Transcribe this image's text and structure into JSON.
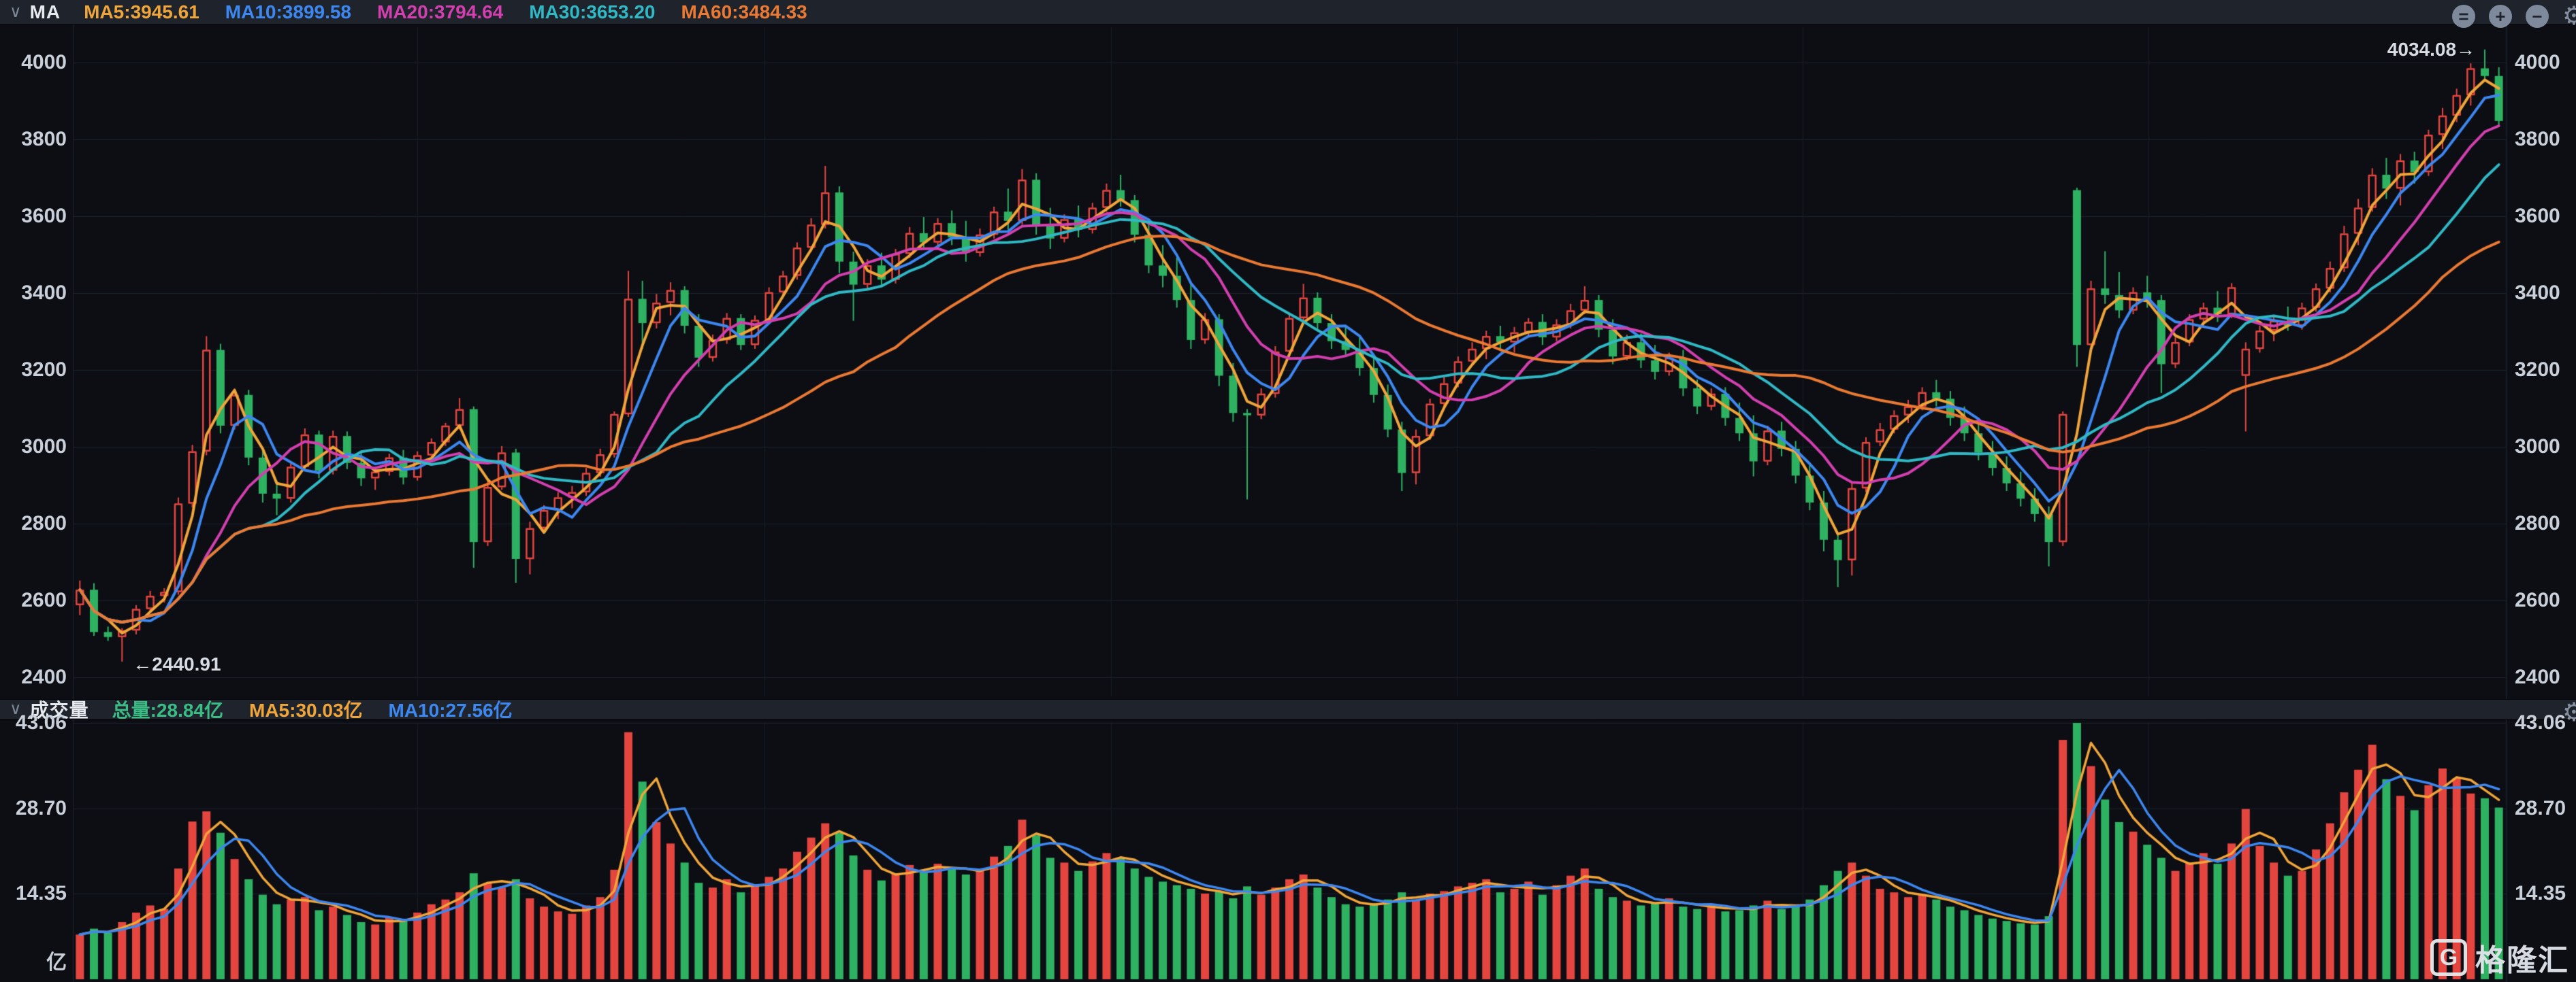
{
  "header": {
    "collapse_icon": "∨",
    "indicator_label": "MA",
    "ma_items": [
      {
        "label": "MA5:3945.61",
        "color": "#f0a53a"
      },
      {
        "label": "MA10:3899.58",
        "color": "#3d87f0"
      },
      {
        "label": "MA20:3794.64",
        "color": "#d23fae"
      },
      {
        "label": "MA30:3653.20",
        "color": "#30b8c4"
      },
      {
        "label": "MA60:3484.33",
        "color": "#ea7933"
      }
    ],
    "toolbar_icons": [
      {
        "name": "circle-equal-icon",
        "glyph": "="
      },
      {
        "name": "circle-plus-icon",
        "glyph": "+"
      },
      {
        "name": "circle-minus-icon",
        "glyph": "−"
      },
      {
        "name": "gear-icon",
        "glyph": "⚙"
      }
    ]
  },
  "volume_header": {
    "collapse_icon": "∨",
    "title": "成交量",
    "items": [
      {
        "label": "总量:28.84亿",
        "color": "#3abd85"
      },
      {
        "label": "MA5:30.03亿",
        "color": "#f0a53a"
      },
      {
        "label": "MA10:27.56亿",
        "color": "#3d87f0"
      }
    ],
    "gear_glyph": "⚙"
  },
  "axes": {
    "price_ticks": [
      4000,
      3800,
      3600,
      3400,
      3200,
      3000,
      2800,
      2600,
      2400
    ],
    "volume_ticks": [
      43.06,
      28.7,
      14.35
    ],
    "volume_unit": "亿"
  },
  "annotations": {
    "low_label": "←2440.91",
    "low_value": 2440.91,
    "low_index": 3,
    "high_label": "4034.08→",
    "high_value": 4034.08,
    "high_index": 171
  },
  "watermark": {
    "logo_letter": "G",
    "text": "格隆汇"
  },
  "chart_data": {
    "type": "candlestick+volume",
    "title": "",
    "price_axis_range": [
      2400,
      4000
    ],
    "volume_axis_max": 43.06,
    "grid": true,
    "ma_windows": [
      5,
      10,
      20,
      30,
      60
    ],
    "ma_render_windows": [
      3,
      5,
      9,
      14,
      28
    ],
    "volume_ma_windows": [
      5,
      10
    ],
    "volume_ma_render_windows": [
      3,
      5
    ],
    "year_grid_indices": [
      24.5,
      49.2,
      73.8,
      98.4,
      123,
      147.6
    ],
    "colors": {
      "up": "#e5453f",
      "down": "#2eb262",
      "ma5": "#f0a53a",
      "ma10": "#3d87f0",
      "ma20": "#d23fae",
      "ma30": "#30b8c4",
      "ma60": "#ea7933",
      "volume_ma5": "#f0a53a",
      "volume_ma10": "#3d87f0",
      "grid": "#1d232e",
      "grid_vertical": "#171c25",
      "background": "#0c0e14",
      "axis_text": "#c9cfd9"
    },
    "candles": [
      [
        2588,
        2652,
        2562,
        2628,
        7.5
      ],
      [
        2628,
        2645,
        2508,
        2518,
        8.5
      ],
      [
        2518,
        2532,
        2495,
        2505,
        7.8
      ],
      [
        2505,
        2528,
        2440.91,
        2522,
        9.6
      ],
      [
        2522,
        2588,
        2512,
        2578,
        11.2
      ],
      [
        2578,
        2625,
        2568,
        2612,
        12.4
      ],
      [
        2612,
        2632,
        2595,
        2622,
        11.8
      ],
      [
        2622,
        2868,
        2615,
        2852,
        18.6
      ],
      [
        2852,
        3005,
        2842,
        2988,
        26.5
      ],
      [
        2988,
        3288,
        2978,
        3252,
        28.2
      ],
      [
        3252,
        3268,
        3035,
        3055,
        24.6
      ],
      [
        3055,
        3152,
        3045,
        3135,
        20.2
      ],
      [
        3135,
        3148,
        2952,
        2972,
        16.8
      ],
      [
        2972,
        2998,
        2855,
        2878,
        14.2
      ],
      [
        2878,
        2912,
        2822,
        2865,
        12.6
      ],
      [
        2865,
        2962,
        2855,
        2948,
        13.4
      ],
      [
        2948,
        3048,
        2938,
        3032,
        13.8
      ],
      [
        3032,
        3042,
        2918,
        2938,
        11.6
      ],
      [
        2938,
        3042,
        2928,
        3028,
        12.2
      ],
      [
        3028,
        3040,
        2942,
        2958,
        10.8
      ],
      [
        2958,
        2985,
        2898,
        2918,
        9.6
      ],
      [
        2918,
        2948,
        2888,
        2935,
        9.2
      ],
      [
        2935,
        2982,
        2925,
        2972,
        10.4
      ],
      [
        2972,
        2992,
        2902,
        2920,
        9.8
      ],
      [
        2920,
        2988,
        2912,
        2978,
        11.2
      ],
      [
        2978,
        3022,
        2968,
        3012,
        12.6
      ],
      [
        3012,
        3062,
        3002,
        3055,
        13.4
      ],
      [
        3055,
        3127,
        3045,
        3098,
        14.6
      ],
      [
        3098,
        3105,
        2685,
        2752,
        17.8
      ],
      [
        2752,
        2912,
        2742,
        2895,
        16.2
      ],
      [
        2895,
        3002,
        2888,
        2985,
        15.4
      ],
      [
        2985,
        2995,
        2646,
        2708,
        16.8
      ],
      [
        2708,
        2805,
        2668,
        2788,
        13.6
      ],
      [
        2788,
        2848,
        2775,
        2835,
        12.2
      ],
      [
        2835,
        2882,
        2812,
        2868,
        11.4
      ],
      [
        2868,
        2898,
        2840,
        2882,
        11.0
      ],
      [
        2882,
        2945,
        2872,
        2932,
        12.4
      ],
      [
        2932,
        2995,
        2922,
        2980,
        13.8
      ],
      [
        2980,
        3092,
        2972,
        3085,
        18.4
      ],
      [
        3085,
        3458,
        3078,
        3385,
        41.5
      ],
      [
        3385,
        3432,
        3255,
        3322,
        33.2
      ],
      [
        3322,
        3398,
        3308,
        3375,
        26.4
      ],
      [
        3375,
        3428,
        3342,
        3408,
        22.8
      ],
      [
        3408,
        3418,
        3295,
        3315,
        19.6
      ],
      [
        3315,
        3345,
        3208,
        3232,
        16.2
      ],
      [
        3232,
        3292,
        3222,
        3278,
        15.4
      ],
      [
        3278,
        3348,
        3268,
        3335,
        16.8
      ],
      [
        3335,
        3345,
        3252,
        3265,
        14.6
      ],
      [
        3265,
        3342,
        3255,
        3330,
        15.8
      ],
      [
        3330,
        3415,
        3320,
        3402,
        17.2
      ],
      [
        3402,
        3458,
        3392,
        3445,
        18.6
      ],
      [
        3445,
        3532,
        3435,
        3518,
        21.4
      ],
      [
        3518,
        3595,
        3508,
        3578,
        23.8
      ],
      [
        3578,
        3731,
        3568,
        3662,
        26.2
      ],
      [
        3662,
        3678,
        3452,
        3482,
        24.6
      ],
      [
        3482,
        3508,
        3328,
        3422,
        20.8
      ],
      [
        3422,
        3488,
        3412,
        3472,
        18.4
      ],
      [
        3472,
        3505,
        3415,
        3435,
        16.6
      ],
      [
        3435,
        3515,
        3425,
        3502,
        17.8
      ],
      [
        3502,
        3572,
        3492,
        3556,
        19.2
      ],
      [
        3556,
        3598,
        3515,
        3532,
        18.0
      ],
      [
        3532,
        3595,
        3522,
        3582,
        19.4
      ],
      [
        3582,
        3615,
        3525,
        3545,
        18.8
      ],
      [
        3545,
        3588,
        3482,
        3505,
        17.6
      ],
      [
        3505,
        3568,
        3495,
        3552,
        18.2
      ],
      [
        3552,
        3625,
        3542,
        3612,
        20.6
      ],
      [
        3612,
        3672,
        3565,
        3588,
        22.4
      ],
      [
        3588,
        3723,
        3578,
        3695,
        26.8
      ],
      [
        3695,
        3712,
        3552,
        3575,
        24.2
      ],
      [
        3575,
        3622,
        3515,
        3542,
        20.4
      ],
      [
        3542,
        3605,
        3532,
        3592,
        19.6
      ],
      [
        3592,
        3628,
        3545,
        3565,
        18.2
      ],
      [
        3565,
        3635,
        3555,
        3622,
        19.8
      ],
      [
        3622,
        3685,
        3612,
        3668,
        21.2
      ],
      [
        3668,
        3708,
        3625,
        3642,
        20.4
      ],
      [
        3642,
        3655,
        3532,
        3552,
        18.6
      ],
      [
        3552,
        3585,
        3452,
        3472,
        17.2
      ],
      [
        3472,
        3525,
        3415,
        3445,
        16.4
      ],
      [
        3445,
        3492,
        3362,
        3382,
        15.8
      ],
      [
        3382,
        3425,
        3255,
        3278,
        15.2
      ],
      [
        3278,
        3348,
        3268,
        3332,
        14.4
      ],
      [
        3332,
        3345,
        3158,
        3185,
        14.8
      ],
      [
        3185,
        3218,
        3065,
        3088,
        13.6
      ],
      [
        3088,
        3098,
        2863,
        3082,
        15.6
      ],
      [
        3082,
        3152,
        3072,
        3138,
        14.2
      ],
      [
        3138,
        3262,
        3128,
        3248,
        15.4
      ],
      [
        3248,
        3348,
        3238,
        3335,
        16.8
      ],
      [
        3335,
        3424,
        3325,
        3388,
        17.6
      ],
      [
        3388,
        3402,
        3302,
        3322,
        15.4
      ],
      [
        3322,
        3345,
        3255,
        3275,
        13.8
      ],
      [
        3275,
        3312,
        3235,
        3252,
        12.6
      ],
      [
        3252,
        3285,
        3185,
        3205,
        12.2
      ],
      [
        3205,
        3242,
        3115,
        3135,
        12.8
      ],
      [
        3135,
        3162,
        3025,
        3045,
        13.4
      ],
      [
        3045,
        3065,
        2885,
        2932,
        14.6
      ],
      [
        2932,
        3045,
        2902,
        3028,
        13.2
      ],
      [
        3028,
        3125,
        3018,
        3112,
        14.4
      ],
      [
        3112,
        3182,
        3102,
        3165,
        14.8
      ],
      [
        3165,
        3235,
        3155,
        3222,
        15.6
      ],
      [
        3222,
        3272,
        3212,
        3255,
        16.2
      ],
      [
        3255,
        3302,
        3228,
        3288,
        16.8
      ],
      [
        3288,
        3315,
        3255,
        3272,
        14.6
      ],
      [
        3272,
        3312,
        3245,
        3298,
        15.2
      ],
      [
        3298,
        3335,
        3288,
        3325,
        16.4
      ],
      [
        3325,
        3345,
        3265,
        3285,
        14.2
      ],
      [
        3285,
        3332,
        3275,
        3318,
        15.8
      ],
      [
        3318,
        3372,
        3308,
        3355,
        17.4
      ],
      [
        3355,
        3418,
        3345,
        3382,
        18.6
      ],
      [
        3382,
        3395,
        3285,
        3305,
        15.2
      ],
      [
        3305,
        3332,
        3215,
        3235,
        13.8
      ],
      [
        3235,
        3292,
        3225,
        3272,
        13.2
      ],
      [
        3272,
        3295,
        3205,
        3225,
        12.4
      ],
      [
        3225,
        3265,
        3175,
        3195,
        12.8
      ],
      [
        3195,
        3245,
        3185,
        3232,
        13.6
      ],
      [
        3232,
        3252,
        3132,
        3152,
        12.2
      ],
      [
        3152,
        3175,
        3085,
        3105,
        11.8
      ],
      [
        3105,
        3152,
        3095,
        3138,
        12.6
      ],
      [
        3138,
        3155,
        3055,
        3075,
        11.4
      ],
      [
        3075,
        3115,
        3015,
        3035,
        11.6
      ],
      [
        3035,
        3082,
        2923,
        2962,
        12.4
      ],
      [
        2962,
        3055,
        2952,
        3042,
        13.2
      ],
      [
        3042,
        3065,
        2975,
        2995,
        11.8
      ],
      [
        2995,
        3015,
        2905,
        2925,
        12.2
      ],
      [
        2925,
        2952,
        2835,
        2855,
        13.4
      ],
      [
        2855,
        2885,
        2728,
        2758,
        15.8
      ],
      [
        2758,
        2775,
        2635,
        2705,
        18.2
      ],
      [
        2705,
        2908,
        2665,
        2892,
        19.6
      ],
      [
        2892,
        3025,
        2882,
        3012,
        17.4
      ],
      [
        3012,
        3062,
        3002,
        3045,
        15.2
      ],
      [
        3045,
        3095,
        3035,
        3082,
        14.6
      ],
      [
        3082,
        3122,
        3062,
        3105,
        13.8
      ],
      [
        3105,
        3155,
        3095,
        3142,
        14.2
      ],
      [
        3142,
        3174,
        3105,
        3125,
        13.4
      ],
      [
        3125,
        3145,
        3055,
        3075,
        12.2
      ],
      [
        3075,
        3105,
        3015,
        3035,
        11.6
      ],
      [
        3035,
        3062,
        2965,
        2985,
        10.8
      ],
      [
        2985,
        3015,
        2925,
        2945,
        10.2
      ],
      [
        2945,
        2975,
        2885,
        2905,
        9.8
      ],
      [
        2905,
        2935,
        2845,
        2865,
        9.4
      ],
      [
        2865,
        2892,
        2805,
        2825,
        9.2
      ],
      [
        2825,
        2845,
        2689,
        2752,
        10.6
      ],
      [
        2752,
        3092,
        2742,
        3085,
        40.2
      ],
      [
        3668,
        3674,
        3208,
        3265,
        43.06
      ],
      [
        3265,
        3432,
        3255,
        3412,
        35.8
      ],
      [
        3412,
        3509,
        3372,
        3395,
        30.2
      ],
      [
        3395,
        3455,
        3335,
        3355,
        26.4
      ],
      [
        3355,
        3415,
        3345,
        3402,
        24.8
      ],
      [
        3402,
        3445,
        3362,
        3382,
        22.6
      ],
      [
        3382,
        3395,
        3140,
        3215,
        20.4
      ],
      [
        3215,
        3285,
        3205,
        3272,
        18.2
      ],
      [
        3272,
        3345,
        3262,
        3332,
        19.6
      ],
      [
        3332,
        3375,
        3312,
        3362,
        21.2
      ],
      [
        3362,
        3405,
        3325,
        3345,
        19.4
      ],
      [
        3345,
        3426,
        3335,
        3415,
        22.8
      ],
      [
        3185,
        3272,
        3040,
        3255,
        28.6
      ],
      [
        3255,
        3315,
        3245,
        3302,
        22.4
      ],
      [
        3302,
        3342,
        3275,
        3328,
        19.6
      ],
      [
        3328,
        3365,
        3302,
        3315,
        17.4
      ],
      [
        3315,
        3375,
        3305,
        3362,
        18.2
      ],
      [
        3362,
        3425,
        3352,
        3412,
        21.8
      ],
      [
        3412,
        3482,
        3402,
        3465,
        26.2
      ],
      [
        3465,
        3575,
        3455,
        3555,
        31.4
      ],
      [
        3555,
        3645,
        3525,
        3622,
        35.2
      ],
      [
        3622,
        3725,
        3612,
        3708,
        39.4
      ],
      [
        3708,
        3752,
        3645,
        3672,
        33.6
      ],
      [
        3672,
        3762,
        3628,
        3745,
        30.8
      ],
      [
        3745,
        3768,
        3685,
        3715,
        28.4
      ],
      [
        3715,
        3825,
        3705,
        3812,
        32.6
      ],
      [
        3812,
        3882,
        3775,
        3862,
        35.4
      ],
      [
        3862,
        3932,
        3845,
        3915,
        33.8
      ],
      [
        3915,
        3998,
        3888,
        3985,
        31.2
      ],
      [
        3985,
        4034.08,
        3952,
        3965,
        30.4
      ],
      [
        3965,
        3988,
        3832,
        3848,
        28.84
      ]
    ]
  }
}
